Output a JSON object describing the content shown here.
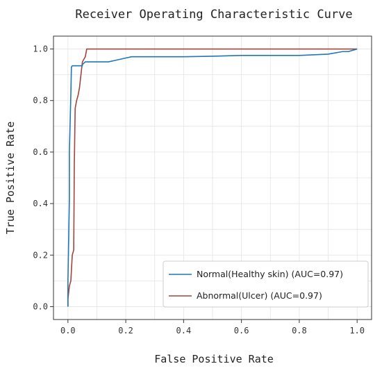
{
  "chart_data": {
    "type": "line",
    "title": "Receiver Operating Characteristic Curve",
    "xlabel": "False Positive Rate",
    "ylabel": "True Positive Rate",
    "xlim": [
      -0.05,
      1.05
    ],
    "ylim": [
      -0.05,
      1.05
    ],
    "x_ticks": [
      0.0,
      0.2,
      0.4,
      0.6,
      0.8,
      1.0
    ],
    "y_ticks": [
      0.0,
      0.2,
      0.4,
      0.6,
      0.8,
      1.0
    ],
    "x_tick_labels": [
      "0.0",
      "0.2",
      "0.4",
      "0.6",
      "0.8",
      "1.0"
    ],
    "y_tick_labels": [
      "0.0",
      "0.2",
      "0.4",
      "0.6",
      "0.8",
      "1.0"
    ],
    "grid": true,
    "legend_position": "bottom-right",
    "series": [
      {
        "name": "Normal(Healthy skin) (AUC=0.97)",
        "color": "#1f77b4",
        "x": [
          0.0,
          0.0,
          0.005,
          0.005,
          0.01,
          0.012,
          0.015,
          0.018,
          0.02,
          0.05,
          0.05,
          0.06,
          0.1,
          0.14,
          0.16,
          0.18,
          0.2,
          0.22,
          0.25,
          0.3,
          0.4,
          0.5,
          0.6,
          0.8,
          0.9,
          0.95,
          0.97,
          1.0
        ],
        "y": [
          0.0,
          0.1,
          0.42,
          0.6,
          0.82,
          0.93,
          0.935,
          0.935,
          0.935,
          0.935,
          0.94,
          0.95,
          0.95,
          0.95,
          0.955,
          0.96,
          0.965,
          0.97,
          0.97,
          0.97,
          0.97,
          0.972,
          0.975,
          0.975,
          0.98,
          0.99,
          0.99,
          1.0
        ]
      },
      {
        "name": "Abnormal(Ulcer) (AUC=0.97)",
        "color": "#a0453c",
        "x": [
          0.0,
          0.0,
          0.005,
          0.01,
          0.015,
          0.02,
          0.022,
          0.025,
          0.03,
          0.035,
          0.04,
          0.045,
          0.05,
          0.06,
          0.065,
          0.07,
          0.08,
          0.3,
          0.5,
          0.6,
          0.8,
          0.9,
          0.95,
          1.0
        ],
        "y": [
          0.0,
          0.03,
          0.08,
          0.1,
          0.2,
          0.22,
          0.55,
          0.77,
          0.8,
          0.82,
          0.85,
          0.9,
          0.95,
          0.97,
          1.0,
          1.0,
          1.0,
          1.0,
          1.0,
          1.0,
          1.0,
          1.0,
          1.0,
          1.0
        ]
      }
    ]
  }
}
